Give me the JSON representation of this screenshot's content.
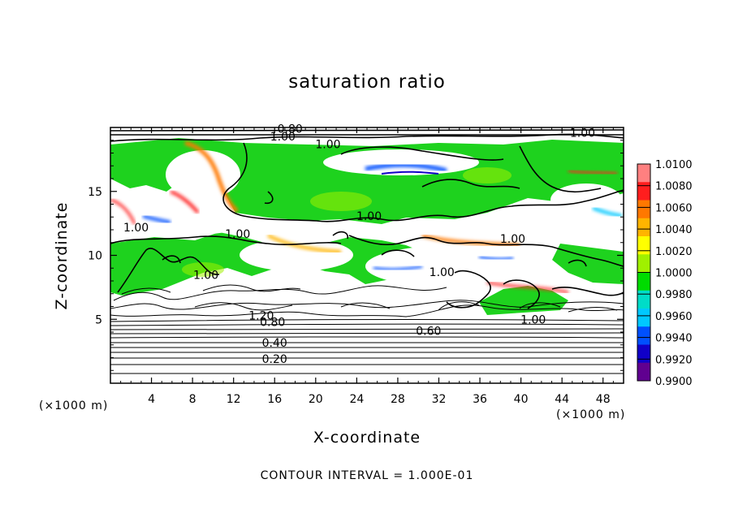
{
  "chart_data": {
    "type": "heatmap",
    "title": "saturation ratio",
    "xlabel": "X-coordinate",
    "ylabel": "Z-coordinate",
    "x_unit": "(×1000 m)",
    "x_ticks": [
      4,
      8,
      12,
      16,
      20,
      24,
      28,
      32,
      36,
      40,
      44,
      48
    ],
    "y_ticks": [
      5,
      10,
      15
    ],
    "xlim": [
      0,
      50
    ],
    "ylim": [
      0,
      20
    ],
    "footnote": "CONTOUR INTERVAL = 1.000E-01",
    "colorbar": {
      "levels": [
        "1.0100",
        "1.0080",
        "1.0060",
        "1.0040",
        "1.0020",
        "1.0000",
        "0.9980",
        "0.9960",
        "0.9940",
        "0.9920",
        "0.9900"
      ],
      "colors": [
        "#ff8080",
        "#ff1e1e",
        "#ff7800",
        "#ffb400",
        "#ffff00",
        "#a0f000",
        "#00dc00",
        "#00dcc8",
        "#00c8ff",
        "#0050ff",
        "#1000c8",
        "#600090"
      ]
    },
    "contour_labels": [
      {
        "text": "0.80",
        "x": 17.5,
        "z": 19.7
      },
      {
        "text": "1.00",
        "x": 16.8,
        "z": 19.1
      },
      {
        "text": "1.00",
        "x": 21.2,
        "z": 18.5
      },
      {
        "text": "1.00",
        "x": 46.0,
        "z": 19.4
      },
      {
        "text": "1.00",
        "x": 25.2,
        "z": 12.9
      },
      {
        "text": "1.00",
        "x": 2.5,
        "z": 12.0
      },
      {
        "text": "1.00",
        "x": 12.4,
        "z": 11.5
      },
      {
        "text": "1.00",
        "x": 39.2,
        "z": 11.1
      },
      {
        "text": "1.00",
        "x": 32.3,
        "z": 8.5
      },
      {
        "text": "1.00",
        "x": 9.3,
        "z": 8.3
      },
      {
        "text": "1.00",
        "x": 41.2,
        "z": 4.8
      },
      {
        "text": "1.20",
        "x": 14.7,
        "z": 5.1
      },
      {
        "text": "0.80",
        "x": 15.8,
        "z": 4.6
      },
      {
        "text": "0.60",
        "x": 31.0,
        "z": 3.9
      },
      {
        "text": "0.40",
        "x": 16.0,
        "z": 3.0
      },
      {
        "text": "0.20",
        "x": 16.0,
        "z": 1.7
      }
    ],
    "grid": false
  }
}
